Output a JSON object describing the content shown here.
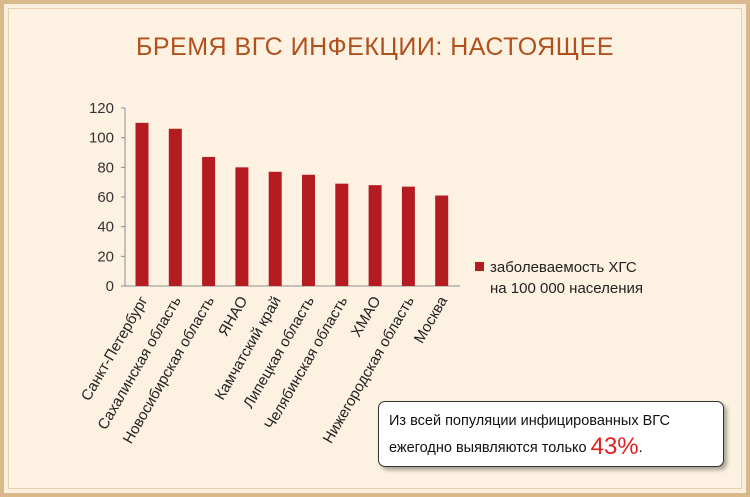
{
  "title": "БРЕМЯ ВГС ИНФЕКЦИИ: НАСТОЯЩЕЕ",
  "note": {
    "line1": "Из всей популяции инфицированных ВГС",
    "line2": "ежегодно выявляются только",
    "percent": "43%",
    "end": "."
  },
  "colors": {
    "bar": "#b51c22",
    "title": "#b0501c",
    "highlight": "#e0201e"
  },
  "chart_data": {
    "type": "bar",
    "categories": [
      "Санкт-Петербург",
      "Сахалинская область",
      "Новосибирская область",
      "ЯНАО",
      "Камчатский край",
      "Липецкая область",
      "Челябинская область",
      "ХМАО",
      "Нижегородская область",
      "Москва"
    ],
    "series": [
      {
        "name": "заболеваемость ХГС на 100 000 населения",
        "values": [
          110,
          106,
          87,
          80,
          77,
          75,
          69,
          68,
          67,
          61
        ]
      }
    ],
    "yticks": [
      0,
      20,
      40,
      60,
      80,
      100,
      120
    ],
    "ylim": [
      0,
      120
    ],
    "legend": {
      "line1": "заболеваемость ХГС",
      "line2": "на 100 000 населения",
      "position": "right"
    },
    "grid": false
  }
}
